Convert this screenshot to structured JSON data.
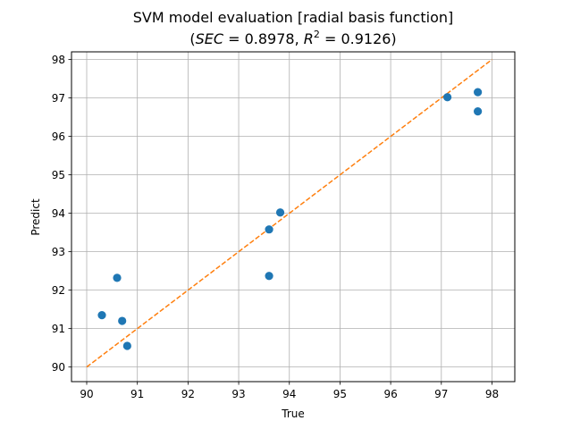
{
  "chart_data": {
    "type": "scatter",
    "title": "SVM model evaluation [radial basis function]",
    "subtitle": {
      "prefix": "(",
      "sec_var": "SEC",
      "sec_eq": " = 0.8978, ",
      "r_var": "R",
      "r_sup": "2",
      "r_eq": " = 0.9126)"
    },
    "xlabel": "True",
    "ylabel": "Predict",
    "xlim": [
      89.7,
      98.45
    ],
    "ylim": [
      89.62,
      98.2
    ],
    "xticks": [
      90,
      91,
      92,
      93,
      94,
      95,
      96,
      97,
      98
    ],
    "yticks": [
      90,
      91,
      92,
      93,
      94,
      95,
      96,
      97,
      98
    ],
    "grid": true,
    "series": [
      {
        "kind": "points",
        "color": "#1f77b4",
        "x": [
          90.3,
          90.6,
          90.7,
          90.8,
          93.6,
          93.6,
          93.82,
          97.12,
          97.72,
          97.72
        ],
        "y": [
          91.35,
          92.32,
          91.2,
          90.55,
          93.58,
          92.37,
          94.02,
          97.02,
          97.15,
          96.65
        ]
      },
      {
        "kind": "reference-line",
        "color": "#ff7f0e",
        "style": "dashed",
        "x": [
          90,
          98
        ],
        "y": [
          90,
          98
        ]
      }
    ]
  }
}
